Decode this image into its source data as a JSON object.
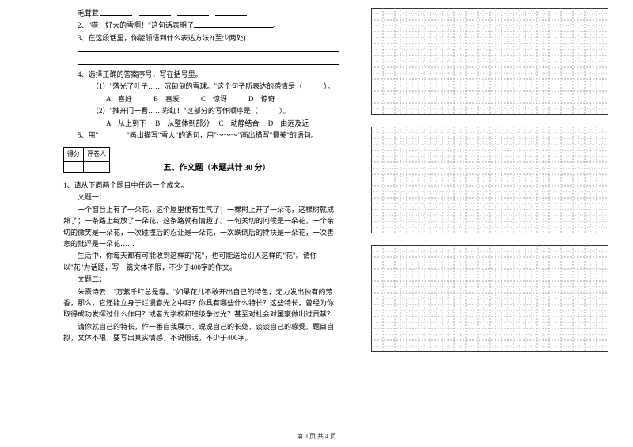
{
  "q_prefix": "毛茸茸",
  "q2": "2、\"嗬！好大的雪啊！\"这句话表明了",
  "q2_suffix": "。",
  "q3": "3、在这段话里，你能领悟到什么表达方法?(至少两处)",
  "q3_lines": [
    "",
    ""
  ],
  "q4": "4、选择正确的答案序号，写在括号里。",
  "q4_1": "（1）\"落光了叶子…… 沉甸甸的雪球。\"这个句子所表达的感情是（　　　）。",
  "q4_1_opts": "A　喜好　　　B　喜爱　　　C　惊讶　　　D　惊奇",
  "q4_2": "（2）\"推开门一看……彩虹！\"这部分的写作顺序是（　　　）。",
  "q4_2_opts": "A　从上到下　 B　从整体到部分　 C　动静结合　 D　由远及近",
  "q5": "5、用\"＿＿＿＿\"画出描写\"雪大\"的语句，用\"～～～\"画出描写\"景美\"的语句。",
  "score_labels": {
    "score": "得分",
    "reviewer": "评卷人"
  },
  "section5_title": "五、作文题（本题共计 30 分）",
  "essay_intro": "1、请从下面两个题目中任选一个成文。",
  "topic1_label": "文题一：",
  "topic1_p1": "一个窗台上有了一朵花，这个屋里便有生气了；一棵树上开了一朵花，这棵树就成熟了；一条路上绽放了一朵花，这条路就有情趣了。一句关切的问候是一朵花，一个亲切的微笑是一朵花，一次碰撞后的忍让是一朵花，一次跌倒后的搀扶是一朵花，一次善意的批评是一朵花……",
  "topic1_p2": "生活中，你每天都有可能收到这样的\"花\"，也可能送给别人这样的\"花\"。请你以\"花\"为话题，写一篇文体不限，不少于400字的作文。",
  "topic2_label": "文题二：",
  "topic2_p1": "朱熹诗云：\"万紫千红总是春。\"如果花儿不敢开出自己的特色，无力发出独有的芳香，那么，它还能立身于烂漫春光之中吗？你具有哪些什么特长？这些特长，曾经为你取得成功发挥过什么作用？或者为学校和班级争过光？甚至对社会对国家做出过贡献？",
  "topic2_p2": "请你就自己的特长，作一番自我展示，说说自己的长处，谈谈自己的感受。题目自拟，文体不限，要写出真实情感，不说假话，不少于400字。",
  "footer": "第 3 页 共 4 页",
  "grid": {
    "boxes": 3,
    "cols": 20,
    "rows": 9,
    "cell_size": 15,
    "stroke": "#888",
    "dash": "2,2",
    "border": "#333"
  }
}
